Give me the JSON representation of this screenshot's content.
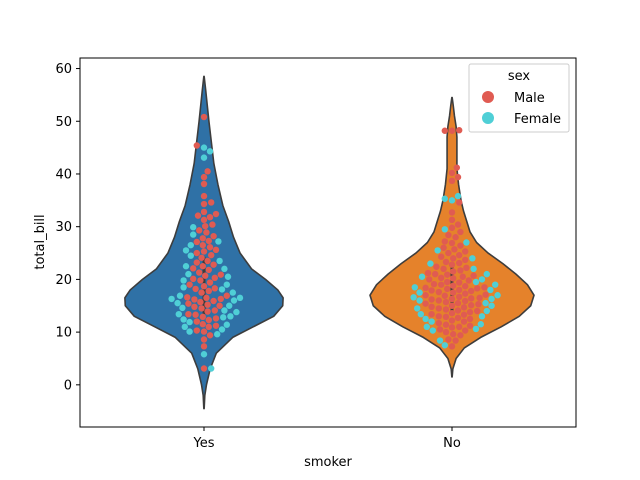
{
  "chart_data": {
    "type": "violin+swarm",
    "xlabel": "smoker",
    "ylabel": "total_bill",
    "categories": [
      "Yes",
      "No"
    ],
    "ylim": [
      -8,
      62
    ],
    "yticks": [
      0,
      10,
      20,
      30,
      40,
      50,
      60
    ],
    "grid": false,
    "legend": {
      "title": "sex",
      "placement": "top-right",
      "entries": [
        {
          "label": "Male",
          "color": "#e05b52"
        },
        {
          "label": "Female",
          "color": "#4fcfd6"
        }
      ]
    },
    "violins": [
      {
        "category": "Yes",
        "color": "#2f71a6",
        "profile": [
          [
            -4.5,
            0.002
          ],
          [
            -2,
            0.01
          ],
          [
            0,
            0.03
          ],
          [
            3,
            0.075
          ],
          [
            6,
            0.15
          ],
          [
            9,
            0.35
          ],
          [
            11,
            0.6
          ],
          [
            13,
            0.85
          ],
          [
            15,
            0.96
          ],
          [
            16.5,
            0.965
          ],
          [
            18,
            0.9
          ],
          [
            20,
            0.75
          ],
          [
            22,
            0.58
          ],
          [
            25,
            0.44
          ],
          [
            28,
            0.36
          ],
          [
            31,
            0.3
          ],
          [
            34,
            0.23
          ],
          [
            38,
            0.17
          ],
          [
            42,
            0.12
          ],
          [
            46,
            0.09
          ],
          [
            50,
            0.06
          ],
          [
            53,
            0.04
          ],
          [
            56,
            0.02
          ],
          [
            58.5,
            0.002
          ]
        ],
        "quartiles": [
          13.4,
          17.9,
          24.3
        ]
      },
      {
        "category": "No",
        "color": "#e5822b",
        "profile": [
          [
            1.5,
            0.002
          ],
          [
            3,
            0.01
          ],
          [
            5,
            0.05
          ],
          [
            7,
            0.15
          ],
          [
            9,
            0.35
          ],
          [
            11,
            0.6
          ],
          [
            13,
            0.82
          ],
          [
            15,
            0.96
          ],
          [
            17,
            1.0
          ],
          [
            19,
            0.92
          ],
          [
            21,
            0.78
          ],
          [
            23,
            0.62
          ],
          [
            25,
            0.44
          ],
          [
            27,
            0.3
          ],
          [
            29,
            0.22
          ],
          [
            31,
            0.18
          ],
          [
            33,
            0.14
          ],
          [
            35,
            0.11
          ],
          [
            38,
            0.08
          ],
          [
            41,
            0.06
          ],
          [
            44,
            0.06
          ],
          [
            47,
            0.06
          ],
          [
            49,
            0.05
          ],
          [
            51,
            0.03
          ],
          [
            53,
            0.015
          ],
          [
            54.5,
            0.002
          ]
        ],
        "quartiles": [
          13.3,
          17.6,
          22.8
        ]
      }
    ],
    "points": [
      {
        "category": "Yes",
        "male": [
          3.1,
          7.3,
          8.6,
          9.4,
          10.1,
          10.3,
          11.0,
          11.2,
          11.5,
          12.0,
          12.3,
          12.6,
          12.9,
          13.3,
          13.4,
          13.9,
          14.1,
          14.5,
          14.8,
          15.0,
          15.2,
          15.4,
          15.7,
          15.9,
          16.2,
          16.3,
          16.5,
          16.6,
          16.9,
          17.5,
          17.8,
          18.2,
          18.3,
          18.7,
          19.0,
          19.4,
          19.8,
          20.1,
          20.3,
          20.7,
          20.9,
          21.3,
          21.8,
          22.1,
          22.5,
          22.8,
          23.2,
          23.5,
          24.1,
          24.6,
          25.0,
          25.3,
          25.6,
          26.1,
          26.5,
          27.1,
          27.3,
          27.8,
          28.2,
          28.9,
          29.3,
          30.1,
          30.4,
          31.3,
          31.8,
          32.1,
          32.4,
          32.8,
          34.3,
          34.6,
          35.8,
          38.1,
          39.4,
          40.5,
          45.4,
          50.8
        ],
        "female": [
          3.1,
          5.8,
          9.6,
          10.1,
          10.5,
          11.0,
          11.4,
          11.9,
          12.4,
          12.8,
          13.0,
          13.4,
          13.8,
          14.1,
          14.6,
          15.0,
          15.5,
          16.0,
          16.3,
          16.5,
          16.9,
          17.5,
          18.1,
          18.5,
          19.0,
          19.8,
          20.5,
          21.0,
          22.0,
          22.5,
          23.5,
          24.5,
          25.5,
          26.5,
          27.2,
          28.5,
          29.9,
          43.1,
          44.3,
          45.0
        ]
      },
      {
        "category": "No",
        "male": [
          7.3,
          8.4,
          8.6,
          9.4,
          9.6,
          10.0,
          10.3,
          10.5,
          10.9,
          11.0,
          11.2,
          11.4,
          11.7,
          12.0,
          12.2,
          12.5,
          12.7,
          12.9,
          13.0,
          13.3,
          13.4,
          13.6,
          13.8,
          14.0,
          14.1,
          14.3,
          14.5,
          14.7,
          14.8,
          15.0,
          15.1,
          15.3,
          15.4,
          15.5,
          15.7,
          15.9,
          16.0,
          16.2,
          16.3,
          16.4,
          16.5,
          16.7,
          16.9,
          17.0,
          17.1,
          17.3,
          17.5,
          17.6,
          17.8,
          17.9,
          18.0,
          18.2,
          18.3,
          18.4,
          18.5,
          18.7,
          18.8,
          19.0,
          19.1,
          19.4,
          19.5,
          19.8,
          20.0,
          20.2,
          20.3,
          20.5,
          20.7,
          20.9,
          21.0,
          21.2,
          21.5,
          21.7,
          22.0,
          22.2,
          22.4,
          22.8,
          23.1,
          23.3,
          23.7,
          24.0,
          24.3,
          24.6,
          25.0,
          25.3,
          25.7,
          26.0,
          26.4,
          26.9,
          27.2,
          28.0,
          28.4,
          29.0,
          29.8,
          30.4,
          31.3,
          32.7,
          34.6,
          38.7,
          39.4,
          40.2,
          41.2,
          48.2,
          48.3,
          48.2
        ],
        "female": [
          7.5,
          8.4,
          10.3,
          10.6,
          11.0,
          11.5,
          12.0,
          12.5,
          13.0,
          13.4,
          14.0,
          14.5,
          15.0,
          15.5,
          16.0,
          16.3,
          16.6,
          17.0,
          17.5,
          18.0,
          18.5,
          19.0,
          19.5,
          20.0,
          20.5,
          21.0,
          22.0,
          23.0,
          24.0,
          25.5,
          27.0,
          29.5,
          35.0,
          35.3,
          35.8
        ]
      }
    ]
  }
}
